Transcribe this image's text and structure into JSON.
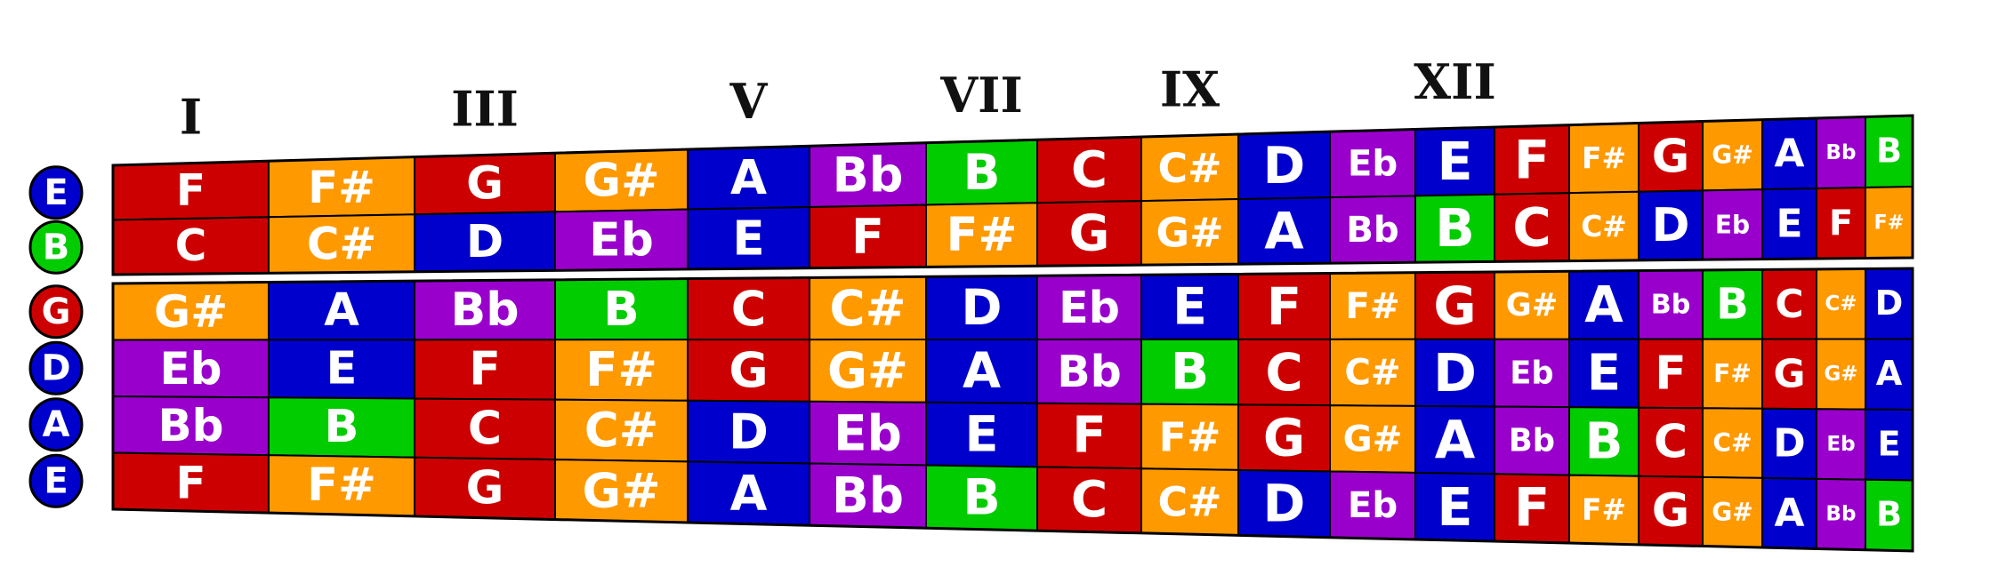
{
  "colors": {
    "C": "#cc0000",
    "C#": "#ff9900",
    "D": "#0000cc",
    "Eb": "#9900cc",
    "E": "#0000cc",
    "F": "#cc0000",
    "F#": "#ff9900",
    "G": "#cc0000",
    "G#": "#ff9900",
    "A": "#0000cc",
    "Bb": "#9900cc",
    "B": "#00cc00"
  },
  "fret_labels": [
    {
      "fret": 1,
      "text": "I"
    },
    {
      "fret": 3,
      "text": "III"
    },
    {
      "fret": 5,
      "text": "V"
    },
    {
      "fret": 7,
      "text": "VII"
    },
    {
      "fret": 9,
      "text": "IX"
    },
    {
      "fret": 12,
      "text": "XII"
    }
  ],
  "strings": [
    {
      "open": "E",
      "notes": [
        "F",
        "F#",
        "G",
        "G#",
        "A",
        "Bb",
        "B",
        "C",
        "C#",
        "D",
        "Eb",
        "E",
        "F",
        "F#",
        "G",
        "G#",
        "A",
        "Bb",
        "B"
      ]
    },
    {
      "open": "B",
      "notes": [
        "C",
        "C#",
        "D",
        "Eb",
        "E",
        "F",
        "F#",
        "G",
        "G#",
        "A",
        "Bb",
        "B",
        "C",
        "C#",
        "D",
        "Eb",
        "E",
        "F",
        "F#"
      ]
    },
    {
      "open": "G",
      "notes": [
        "G#",
        "A",
        "Bb",
        "B",
        "C",
        "C#",
        "D",
        "Eb",
        "E",
        "F",
        "F#",
        "G",
        "G#",
        "A",
        "Bb",
        "B",
        "C",
        "C#",
        "D"
      ]
    },
    {
      "open": "D",
      "notes": [
        "Eb",
        "E",
        "F",
        "F#",
        "G",
        "G#",
        "A",
        "Bb",
        "B",
        "C",
        "C#",
        "D",
        "Eb",
        "E",
        "F",
        "F#",
        "G",
        "G#",
        "A"
      ]
    },
    {
      "open": "A",
      "notes": [
        "Bb",
        "B",
        "C",
        "C#",
        "D",
        "Eb",
        "E",
        "F",
        "F#",
        "G",
        "G#",
        "A",
        "Bb",
        "B",
        "C",
        "C#",
        "D",
        "Eb",
        "E"
      ]
    },
    {
      "open": "E",
      "notes": [
        "F",
        "F#",
        "G",
        "G#",
        "A",
        "Bb",
        "B",
        "C",
        "C#",
        "D",
        "Eb",
        "E",
        "F",
        "F#",
        "G",
        "G#",
        "A",
        "Bb",
        "B"
      ]
    }
  ]
}
